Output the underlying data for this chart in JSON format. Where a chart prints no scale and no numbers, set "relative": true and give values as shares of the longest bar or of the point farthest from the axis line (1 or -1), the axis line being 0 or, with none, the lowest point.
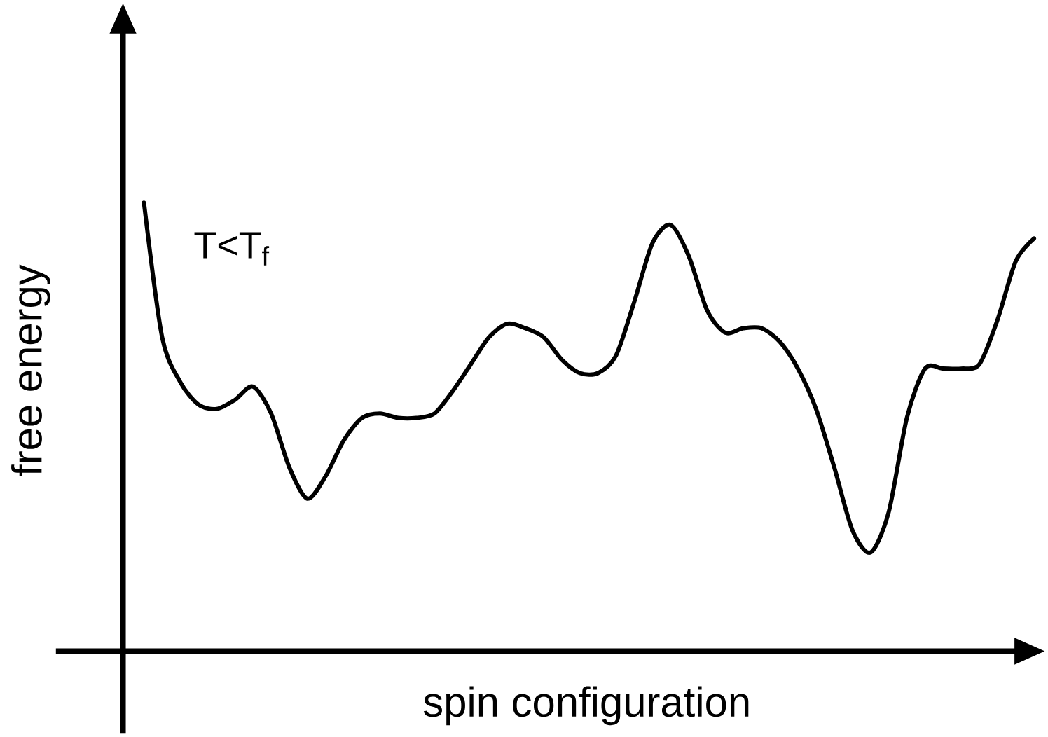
{
  "chart_data": {
    "type": "line",
    "relative": true,
    "xlabel": "spin configuration",
    "ylabel": "free energy",
    "annotations": [
      "T<T$_{f}$"
    ],
    "color": "#000000",
    "marker": "none",
    "categories": [
      null,
      null,
      null,
      null,
      null,
      null,
      null,
      null,
      null,
      null,
      null,
      null,
      null,
      null,
      null,
      null,
      null,
      null,
      null,
      null,
      null,
      null,
      null,
      null,
      null,
      null,
      null,
      null,
      null,
      null,
      null,
      null,
      null,
      null,
      null,
      null,
      null,
      null,
      null,
      null,
      null,
      null,
      null,
      null,
      null,
      null,
      null,
      null,
      null,
      null
    ],
    "values": [
      1.0,
      0.7,
      0.6,
      0.55,
      0.54,
      0.56,
      0.59,
      0.53,
      0.41,
      0.34,
      0.39,
      0.47,
      0.52,
      0.53,
      0.52,
      0.52,
      0.53,
      0.58,
      0.64,
      0.7,
      0.73,
      0.72,
      0.7,
      0.65,
      0.62,
      0.62,
      0.66,
      0.78,
      0.91,
      0.95,
      0.88,
      0.76,
      0.71,
      0.72,
      0.72,
      0.69,
      0.63,
      0.54,
      0.41,
      0.27,
      0.22,
      0.31,
      0.52,
      0.63,
      0.63,
      0.63,
      0.64,
      0.74,
      0.87,
      0.92
    ]
  }
}
